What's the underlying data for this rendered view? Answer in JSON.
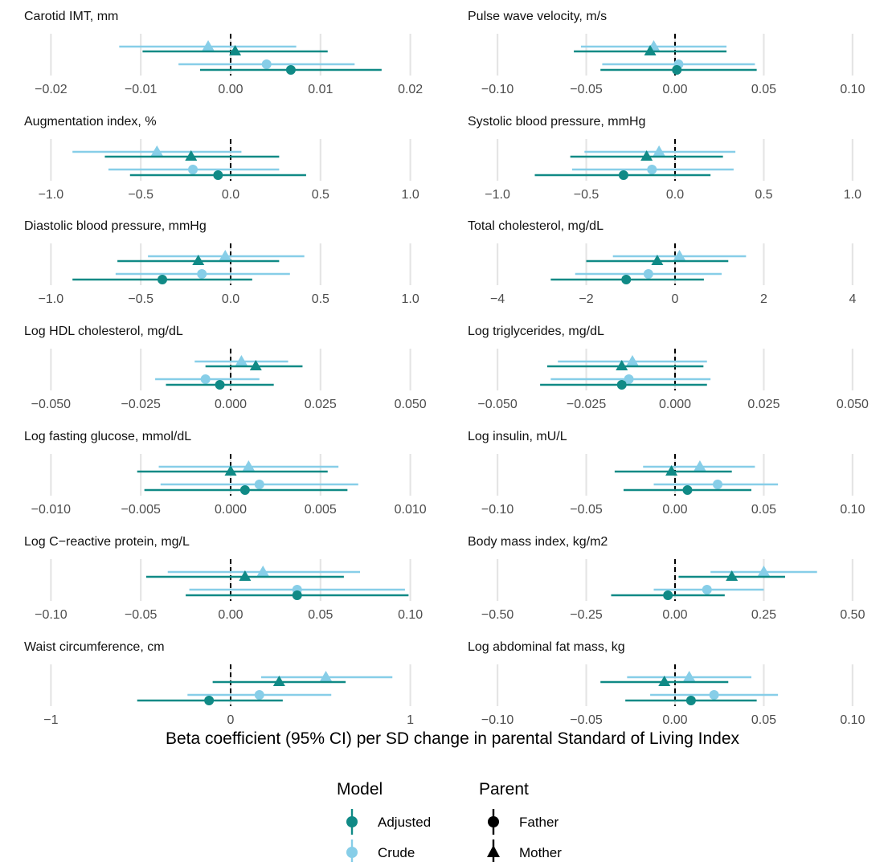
{
  "colors": {
    "adjusted": "#108A86",
    "crude": "#87CEE8",
    "grid": "#E5E5E5",
    "zero": "#000000",
    "text": "#111111",
    "tick": "#4D4D4D"
  },
  "shared_xlabel": "Beta coefficient (95% CI) per SD change in parental Standard of Living Index",
  "legend": {
    "model_title": "Model",
    "model_items": [
      "Adjusted",
      "Crude"
    ],
    "parent_title": "Parent",
    "parent_items": [
      "Father",
      "Mother"
    ]
  },
  "chart_data": [
    {
      "type": "scatter",
      "title": "Carotid IMT, mm",
      "xlim": [
        -0.022,
        0.022
      ],
      "ticks": [
        -0.02,
        -0.01,
        0.0,
        0.01,
        0.02
      ],
      "tick_labels": [
        "−0.02",
        "−0.01",
        "0.00",
        "0.01",
        "0.02"
      ],
      "series": [
        {
          "name": "Mother Crude",
          "model": "Crude",
          "parent": "Mother",
          "est": -0.0025,
          "lo": -0.0124,
          "hi": 0.0073
        },
        {
          "name": "Mother Adjusted",
          "model": "Adjusted",
          "parent": "Mother",
          "est": 0.0005,
          "lo": -0.0098,
          "hi": 0.0108
        },
        {
          "name": "Father Crude",
          "model": "Crude",
          "parent": "Father",
          "est": 0.004,
          "lo": -0.0058,
          "hi": 0.0138
        },
        {
          "name": "Father Adjusted",
          "model": "Adjusted",
          "parent": "Father",
          "est": 0.0067,
          "lo": -0.0034,
          "hi": 0.0168
        }
      ]
    },
    {
      "type": "scatter",
      "title": "Pulse wave velocity, m/s",
      "xlim": [
        -0.11,
        0.11
      ],
      "ticks": [
        -0.1,
        -0.05,
        0.0,
        0.05,
        0.1
      ],
      "tick_labels": [
        "−0.10",
        "−0.05",
        "0.00",
        "0.05",
        "0.10"
      ],
      "series": [
        {
          "name": "Mother Crude",
          "model": "Crude",
          "parent": "Mother",
          "est": -0.012,
          "lo": -0.053,
          "hi": 0.029
        },
        {
          "name": "Mother Adjusted",
          "model": "Adjusted",
          "parent": "Mother",
          "est": -0.014,
          "lo": -0.057,
          "hi": 0.029
        },
        {
          "name": "Father Crude",
          "model": "Crude",
          "parent": "Father",
          "est": 0.002,
          "lo": -0.041,
          "hi": 0.045
        },
        {
          "name": "Father Adjusted",
          "model": "Adjusted",
          "parent": "Father",
          "est": 0.001,
          "lo": -0.042,
          "hi": 0.046
        }
      ]
    },
    {
      "type": "scatter",
      "title": "Augmentation index, %",
      "xlim": [
        -1.1,
        1.1
      ],
      "ticks": [
        -1.0,
        -0.5,
        0.0,
        0.5,
        1.0
      ],
      "tick_labels": [
        "−1.0",
        "−0.5",
        "0.0",
        "0.5",
        "1.0"
      ],
      "series": [
        {
          "name": "Mother Crude",
          "model": "Crude",
          "parent": "Mother",
          "est": -0.41,
          "lo": -0.88,
          "hi": 0.06
        },
        {
          "name": "Mother Adjusted",
          "model": "Adjusted",
          "parent": "Mother",
          "est": -0.22,
          "lo": -0.7,
          "hi": 0.27
        },
        {
          "name": "Father Crude",
          "model": "Crude",
          "parent": "Father",
          "est": -0.21,
          "lo": -0.68,
          "hi": 0.27
        },
        {
          "name": "Father Adjusted",
          "model": "Adjusted",
          "parent": "Father",
          "est": -0.07,
          "lo": -0.56,
          "hi": 0.42
        }
      ]
    },
    {
      "type": "scatter",
      "title": "Systolic blood pressure, mmHg",
      "xlim": [
        -1.1,
        1.1
      ],
      "ticks": [
        -1.0,
        -0.5,
        0.0,
        0.5,
        1.0
      ],
      "tick_labels": [
        "−1.0",
        "−0.5",
        "0.0",
        "0.5",
        "1.0"
      ],
      "series": [
        {
          "name": "Mother Crude",
          "model": "Crude",
          "parent": "Mother",
          "est": -0.09,
          "lo": -0.51,
          "hi": 0.34
        },
        {
          "name": "Mother Adjusted",
          "model": "Adjusted",
          "parent": "Mother",
          "est": -0.16,
          "lo": -0.59,
          "hi": 0.27
        },
        {
          "name": "Father Crude",
          "model": "Crude",
          "parent": "Father",
          "est": -0.13,
          "lo": -0.58,
          "hi": 0.33
        },
        {
          "name": "Father Adjusted",
          "model": "Adjusted",
          "parent": "Father",
          "est": -0.29,
          "lo": -0.79,
          "hi": 0.2
        }
      ]
    },
    {
      "type": "scatter",
      "title": "Diastolic blood pressure, mmHg",
      "xlim": [
        -1.1,
        1.1
      ],
      "ticks": [
        -1.0,
        -0.5,
        0.0,
        0.5,
        1.0
      ],
      "tick_labels": [
        "−1.0",
        "−0.5",
        "0.0",
        "0.5",
        "1.0"
      ],
      "series": [
        {
          "name": "Mother Crude",
          "model": "Crude",
          "parent": "Mother",
          "est": -0.03,
          "lo": -0.46,
          "hi": 0.41
        },
        {
          "name": "Mother Adjusted",
          "model": "Adjusted",
          "parent": "Mother",
          "est": -0.18,
          "lo": -0.63,
          "hi": 0.27
        },
        {
          "name": "Father Crude",
          "model": "Crude",
          "parent": "Father",
          "est": -0.16,
          "lo": -0.64,
          "hi": 0.33
        },
        {
          "name": "Father Adjusted",
          "model": "Adjusted",
          "parent": "Father",
          "est": -0.38,
          "lo": -0.88,
          "hi": 0.12
        }
      ]
    },
    {
      "type": "scatter",
      "title": "Total cholesterol, mg/dL",
      "xlim": [
        -4.4,
        4.4
      ],
      "ticks": [
        -4,
        -2,
        0,
        2,
        4
      ],
      "tick_labels": [
        "−4",
        "−2",
        "0",
        "2",
        "4"
      ],
      "series": [
        {
          "name": "Mother Crude",
          "model": "Crude",
          "parent": "Mother",
          "est": 0.1,
          "lo": -1.4,
          "hi": 1.6
        },
        {
          "name": "Mother Adjusted",
          "model": "Adjusted",
          "parent": "Mother",
          "est": -0.4,
          "lo": -2.0,
          "hi": 1.2
        },
        {
          "name": "Father Crude",
          "model": "Crude",
          "parent": "Father",
          "est": -0.6,
          "lo": -2.25,
          "hi": 1.05
        },
        {
          "name": "Father Adjusted",
          "model": "Adjusted",
          "parent": "Father",
          "est": -1.1,
          "lo": -2.8,
          "hi": 0.65
        }
      ]
    },
    {
      "type": "scatter",
      "title": "Log HDL cholesterol, mg/dL",
      "xlim": [
        -0.055,
        0.055
      ],
      "ticks": [
        -0.05,
        -0.025,
        0.0,
        0.025,
        0.05
      ],
      "tick_labels": [
        "−0.050",
        "−0.025",
        "0.000",
        "0.025",
        "0.050"
      ],
      "series": [
        {
          "name": "Mother Crude",
          "model": "Crude",
          "parent": "Mother",
          "est": 0.003,
          "lo": -0.01,
          "hi": 0.016
        },
        {
          "name": "Mother Adjusted",
          "model": "Adjusted",
          "parent": "Mother",
          "est": 0.007,
          "lo": -0.007,
          "hi": 0.02
        },
        {
          "name": "Father Crude",
          "model": "Crude",
          "parent": "Father",
          "est": -0.007,
          "lo": -0.021,
          "hi": 0.008
        },
        {
          "name": "Father Adjusted",
          "model": "Adjusted",
          "parent": "Father",
          "est": -0.003,
          "lo": -0.018,
          "hi": 0.012
        }
      ]
    },
    {
      "type": "scatter",
      "title": "Log triglycerides, mg/dL",
      "xlim": [
        -0.055,
        0.055
      ],
      "ticks": [
        -0.05,
        -0.025,
        0.0,
        0.025,
        0.05
      ],
      "tick_labels": [
        "−0.050",
        "−0.025",
        "0.000",
        "0.025",
        "0.050"
      ],
      "series": [
        {
          "name": "Mother Crude",
          "model": "Crude",
          "parent": "Mother",
          "est": -0.012,
          "lo": -0.033,
          "hi": 0.009
        },
        {
          "name": "Mother Adjusted",
          "model": "Adjusted",
          "parent": "Mother",
          "est": -0.015,
          "lo": -0.036,
          "hi": 0.008
        },
        {
          "name": "Father Crude",
          "model": "Crude",
          "parent": "Father",
          "est": -0.013,
          "lo": -0.035,
          "hi": 0.01
        },
        {
          "name": "Father Adjusted",
          "model": "Adjusted",
          "parent": "Father",
          "est": -0.015,
          "lo": -0.038,
          "hi": 0.009
        }
      ]
    },
    {
      "type": "scatter",
      "title": "Log fasting glucose, mmol/dL",
      "xlim": [
        -0.011,
        0.011
      ],
      "ticks": [
        -0.01,
        -0.005,
        0.0,
        0.005,
        0.01
      ],
      "tick_labels": [
        "−0.010",
        "−0.005",
        "0.000",
        "0.005",
        "0.010"
      ],
      "series": [
        {
          "name": "Mother Crude",
          "model": "Crude",
          "parent": "Mother",
          "est": 0.001,
          "lo": -0.004,
          "hi": 0.006
        },
        {
          "name": "Mother Adjusted",
          "model": "Adjusted",
          "parent": "Mother",
          "est": 0.0,
          "lo": -0.0052,
          "hi": 0.0054
        },
        {
          "name": "Father Crude",
          "model": "Crude",
          "parent": "Father",
          "est": 0.0016,
          "lo": -0.0039,
          "hi": 0.0071
        },
        {
          "name": "Father Adjusted",
          "model": "Adjusted",
          "parent": "Father",
          "est": 0.0008,
          "lo": -0.0048,
          "hi": 0.0065
        }
      ]
    },
    {
      "type": "scatter",
      "title": "Log insulin, mU/L",
      "xlim": [
        -0.11,
        0.11
      ],
      "ticks": [
        -0.1,
        -0.05,
        0.0,
        0.05,
        0.1
      ],
      "tick_labels": [
        "−0.10",
        "−0.05",
        "0.00",
        "0.05",
        "0.10"
      ],
      "series": [
        {
          "name": "Mother Crude",
          "model": "Crude",
          "parent": "Mother",
          "est": 0.014,
          "lo": -0.018,
          "hi": 0.045
        },
        {
          "name": "Mother Adjusted",
          "model": "Adjusted",
          "parent": "Mother",
          "est": -0.002,
          "lo": -0.034,
          "hi": 0.032
        },
        {
          "name": "Father Crude",
          "model": "Crude",
          "parent": "Father",
          "est": 0.024,
          "lo": -0.012,
          "hi": 0.058
        },
        {
          "name": "Father Adjusted",
          "model": "Adjusted",
          "parent": "Father",
          "est": 0.007,
          "lo": -0.029,
          "hi": 0.043
        }
      ]
    },
    {
      "type": "scatter",
      "title": "Log C−reactive protein, mg/L",
      "xlim": [
        -0.11,
        0.11
      ],
      "ticks": [
        -0.1,
        -0.05,
        0.0,
        0.05,
        0.1
      ],
      "tick_labels": [
        "−0.10",
        "−0.05",
        "0.00",
        "0.05",
        "0.10"
      ],
      "series": [
        {
          "name": "Mother Crude",
          "model": "Crude",
          "parent": "Mother",
          "est": 0.018,
          "lo": -0.035,
          "hi": 0.072
        },
        {
          "name": "Mother Adjusted",
          "model": "Adjusted",
          "parent": "Mother",
          "est": 0.008,
          "lo": -0.047,
          "hi": 0.063
        },
        {
          "name": "Father Crude",
          "model": "Crude",
          "parent": "Father",
          "est": 0.037,
          "lo": -0.023,
          "hi": 0.097
        },
        {
          "name": "Father Adjusted",
          "model": "Adjusted",
          "parent": "Father",
          "est": 0.037,
          "lo": -0.025,
          "hi": 0.099
        }
      ]
    },
    {
      "type": "scatter",
      "title": "Body mass index, kg/m2",
      "xlim": [
        -0.55,
        0.55
      ],
      "ticks": [
        -0.5,
        -0.25,
        0.0,
        0.25,
        0.5
      ],
      "tick_labels": [
        "−0.50",
        "−0.25",
        "0.00",
        "0.25",
        "0.50"
      ],
      "series": [
        {
          "name": "Mother Crude",
          "model": "Crude",
          "parent": "Mother",
          "est": 0.25,
          "lo": 0.1,
          "hi": 0.4
        },
        {
          "name": "Mother Adjusted",
          "model": "Adjusted",
          "parent": "Mother",
          "est": 0.16,
          "lo": 0.01,
          "hi": 0.31
        },
        {
          "name": "Father Crude",
          "model": "Crude",
          "parent": "Father",
          "est": 0.09,
          "lo": -0.06,
          "hi": 0.25
        },
        {
          "name": "Father Adjusted",
          "model": "Adjusted",
          "parent": "Father",
          "est": -0.02,
          "lo": -0.18,
          "hi": 0.14
        }
      ]
    },
    {
      "type": "scatter",
      "title": "Waist circumference, cm",
      "xlim": [
        -1.1,
        1.1
      ],
      "ticks": [
        -1,
        0,
        1
      ],
      "tick_labels": [
        "−1",
        "0",
        "1"
      ],
      "series": [
        {
          "name": "Mother Crude",
          "model": "Crude",
          "parent": "Mother",
          "est": 0.53,
          "lo": 0.17,
          "hi": 0.9
        },
        {
          "name": "Mother Adjusted",
          "model": "Adjusted",
          "parent": "Mother",
          "est": 0.27,
          "lo": -0.1,
          "hi": 0.64
        },
        {
          "name": "Father Crude",
          "model": "Crude",
          "parent": "Father",
          "est": 0.16,
          "lo": -0.24,
          "hi": 0.56
        },
        {
          "name": "Father Adjusted",
          "model": "Adjusted",
          "parent": "Father",
          "est": -0.12,
          "lo": -0.52,
          "hi": 0.29
        }
      ]
    },
    {
      "type": "scatter",
      "title": "Log abdominal fat mass, kg",
      "xlim": [
        -0.11,
        0.11
      ],
      "ticks": [
        -0.1,
        -0.05,
        0.0,
        0.05,
        0.1
      ],
      "tick_labels": [
        "−0.10",
        "−0.05",
        "0.00",
        "0.05",
        "0.10"
      ],
      "series": [
        {
          "name": "Mother Crude",
          "model": "Crude",
          "parent": "Mother",
          "est": 0.008,
          "lo": -0.027,
          "hi": 0.043
        },
        {
          "name": "Mother Adjusted",
          "model": "Adjusted",
          "parent": "Mother",
          "est": -0.006,
          "lo": -0.042,
          "hi": 0.03
        },
        {
          "name": "Father Crude",
          "model": "Crude",
          "parent": "Father",
          "est": 0.022,
          "lo": -0.014,
          "hi": 0.058
        },
        {
          "name": "Father Adjusted",
          "model": "Adjusted",
          "parent": "Father",
          "est": 0.009,
          "lo": -0.028,
          "hi": 0.046
        }
      ]
    }
  ]
}
